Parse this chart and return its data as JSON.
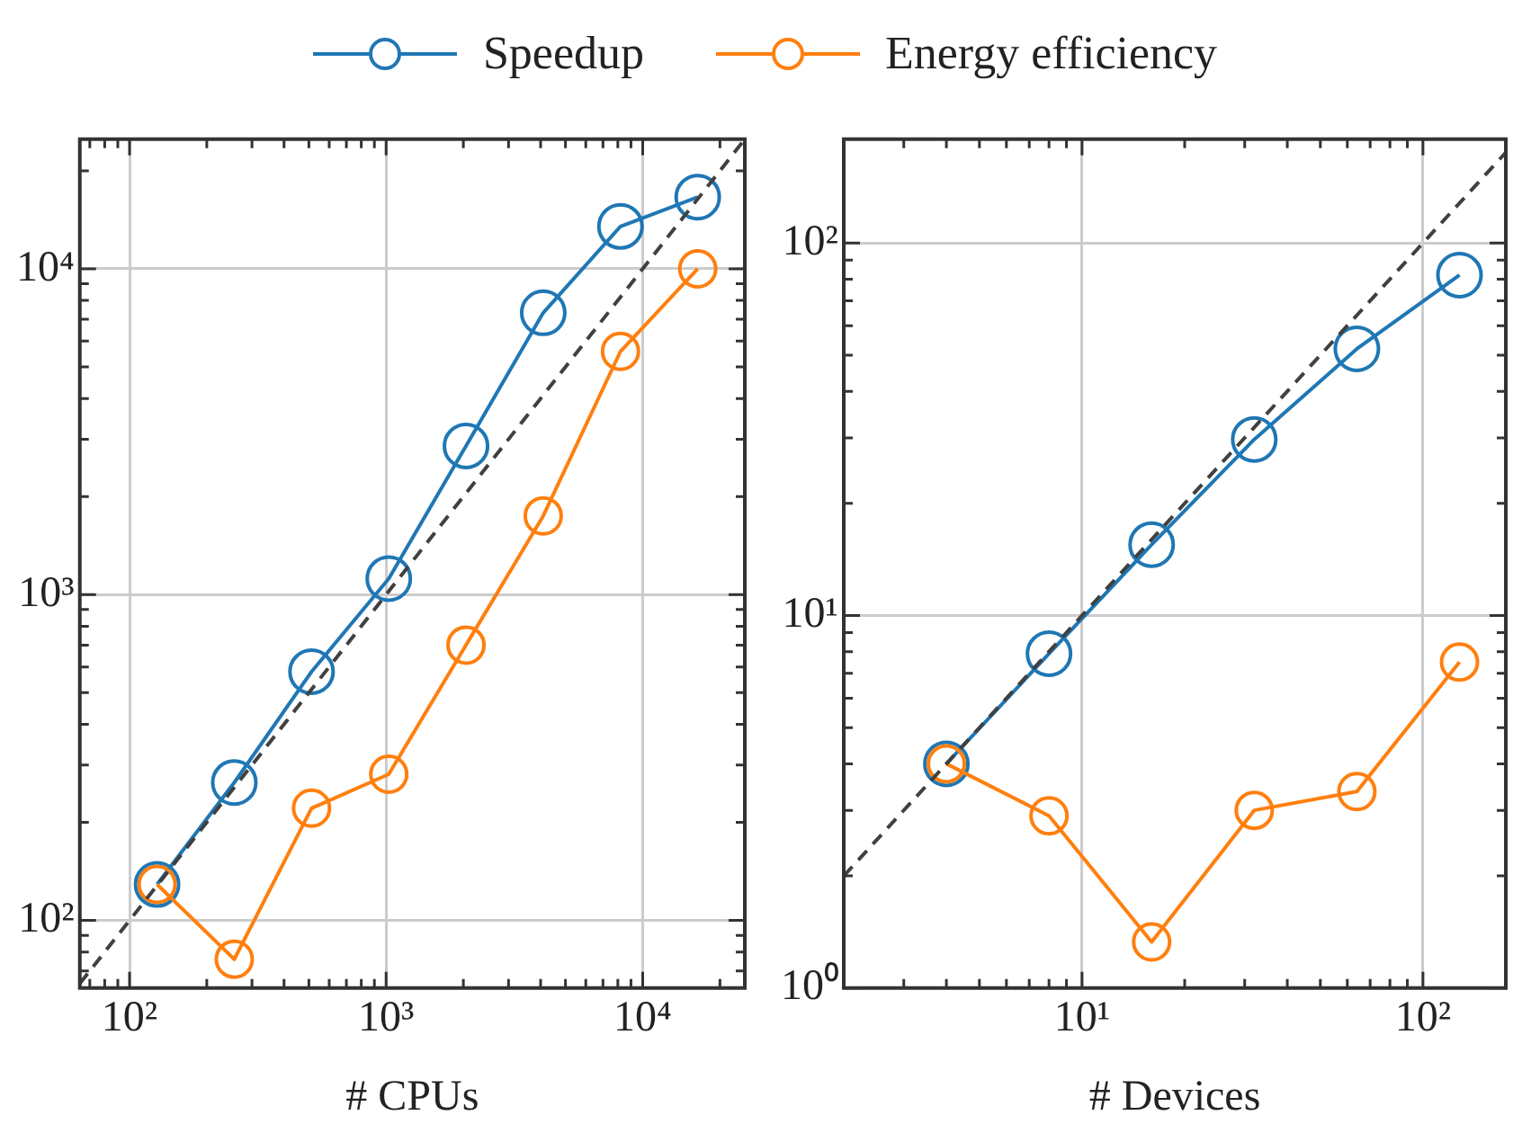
{
  "chart_data": [
    {
      "type": "line",
      "xlabel": "# CPUs",
      "log": "xy",
      "grid": true,
      "legend": "top",
      "marker": "circle",
      "x": [
        128,
        256,
        512,
        1024,
        2048,
        4096,
        8192,
        16384
      ],
      "xlim": [
        64,
        25000
      ],
      "ylim": [
        62,
        25000
      ],
      "xticks": [
        {
          "value": 100,
          "label": "10²"
        },
        {
          "value": 1000,
          "label": "10³"
        },
        {
          "value": 10000,
          "label": "10⁴"
        }
      ],
      "yticks": [
        {
          "value": 100,
          "label": "10²"
        },
        {
          "value": 1000,
          "label": "10³"
        },
        {
          "value": 10000,
          "label": "10⁴"
        }
      ],
      "series": [
        {
          "name": "Speedup",
          "color": "#1f77b4",
          "values": [
            129,
            265,
            580,
            1120,
            2860,
            7330,
            13500,
            16600
          ]
        },
        {
          "name": "Energy efficiency",
          "color": "#ff7f0e",
          "values": [
            129,
            76,
            221,
            281,
            700,
            1745,
            5580,
            10000
          ]
        },
        {
          "color": "#404040",
          "x": [
            64,
            25000
          ],
          "values": [
            64,
            25000
          ],
          "marker": "none",
          "line_style": "dashed"
        }
      ]
    },
    {
      "type": "line",
      "xlabel": "# Devices",
      "log": "xy",
      "grid": true,
      "legend": false,
      "marker": "circle",
      "x": [
        4,
        8,
        16,
        32,
        64,
        128
      ],
      "xlim": [
        2,
        175
      ],
      "ylim": [
        1,
        190
      ],
      "xticks": [
        {
          "value": 10,
          "label": "10¹"
        },
        {
          "value": 100,
          "label": "10²"
        }
      ],
      "yticks": [
        {
          "value": 1,
          "label": "10⁰"
        },
        {
          "value": 10,
          "label": "10¹"
        },
        {
          "value": 100,
          "label": "10²"
        }
      ],
      "series": [
        {
          "color": "#1f77b4",
          "values": [
            4,
            7.9,
            15.5,
            29.7,
            52,
            82
          ]
        },
        {
          "color": "#ff7f0e",
          "values": [
            4,
            2.9,
            1.33,
            3.0,
            3.37,
            7.5
          ]
        },
        {
          "color": "#404040",
          "x": [
            2,
            175
          ],
          "values": [
            2,
            175
          ],
          "marker": "none",
          "line_style": "dashed"
        }
      ]
    }
  ]
}
